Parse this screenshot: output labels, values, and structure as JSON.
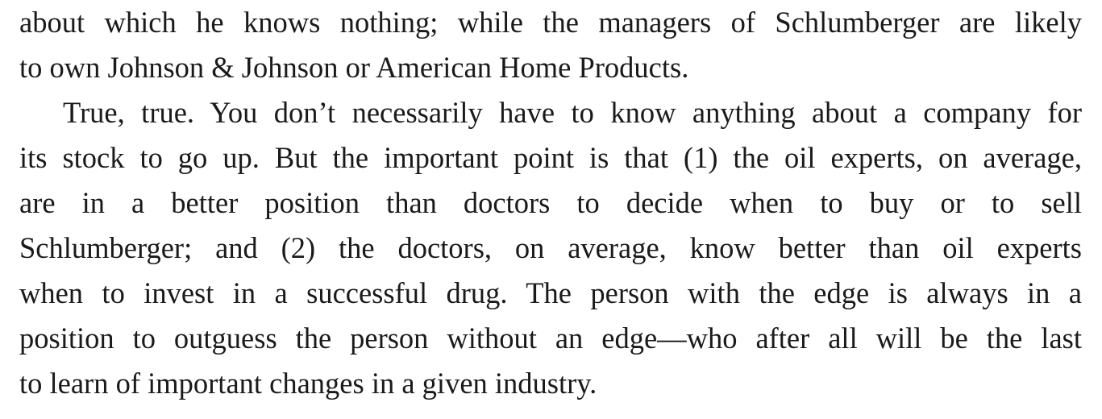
{
  "document": {
    "paragraphs": [
      {
        "continued": true,
        "lines": [
          "about which he knows nothing; while the managers of Schlumberger are likely",
          "to own Johnson & Johnson or American Home Products."
        ]
      },
      {
        "continued": false,
        "lines": [
          "True, true. You don’t necessarily have to know anything about a company for",
          "its stock to go up. But the important point is that (1) the oil experts, on average,",
          "are in a better position than doctors to decide when to buy or to sell",
          "Schlumberger; and (2) the doctors, on average, know better than oil experts",
          "when to invest in a successful drug. The person with the edge is always in a",
          "position to outguess the person without an edge—who after all will be the last",
          "to learn of important changes in a given industry."
        ]
      }
    ]
  }
}
